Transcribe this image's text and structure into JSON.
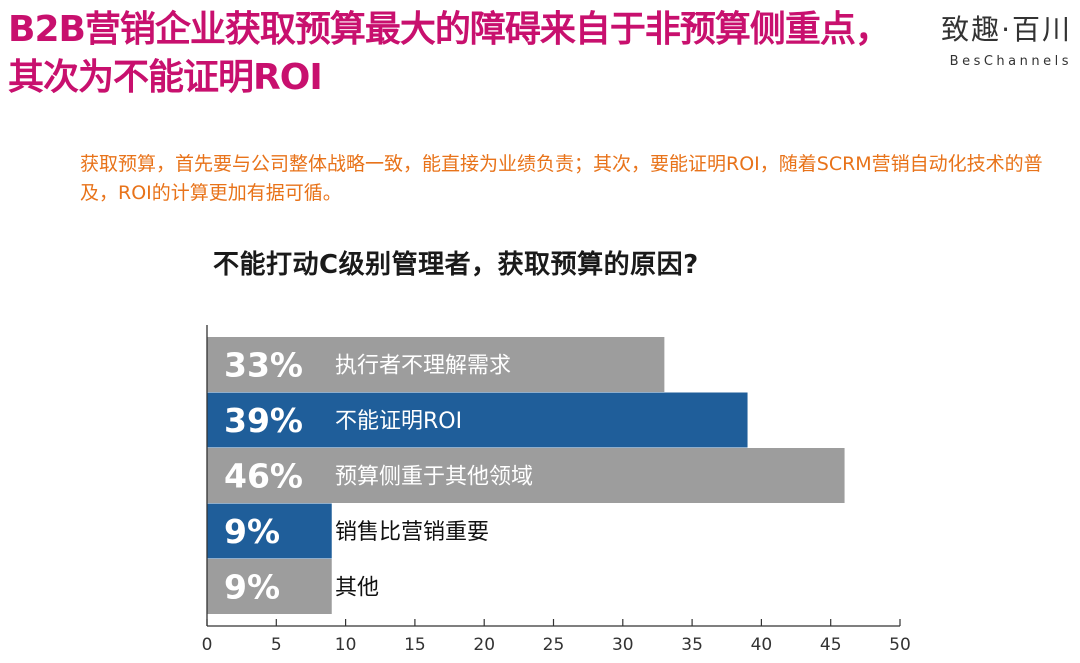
{
  "headline": "B2B营销企业获取预算最大的障碍来自于非预算侧重点，其次为不能证明ROI",
  "logo": {
    "cn": "致趣·百川",
    "en": "BesChannels"
  },
  "intro": "获取预算，首先要与公司整体战略一致，能直接为业绩负责；其次，要能证明ROI，随着SCRM营销自动化技术的普及，ROI的计算更加有据可循。",
  "colors": {
    "headline": "#c8106e",
    "intro": "#e8731a",
    "gray_bar": "#9d9d9d",
    "blue_bar": "#1f5e9a"
  },
  "chart_data": {
    "type": "bar",
    "orientation": "horizontal",
    "title": "不能打动C级别管理者，获取预算的原因?",
    "categories": [
      "执行者不理解需求",
      "不能证明ROI",
      "预算侧重于其他领域",
      "销售比营销重要",
      "其他"
    ],
    "values": [
      33,
      39,
      46,
      9,
      9
    ],
    "value_labels": [
      "33%",
      "39%",
      "46%",
      "9%",
      "9%"
    ],
    "bar_colors": [
      "#9d9d9d",
      "#1f5e9a",
      "#9d9d9d",
      "#1f5e9a",
      "#9d9d9d"
    ],
    "xlim": [
      0,
      50
    ],
    "xticks": [
      "0",
      "5",
      "10",
      "15",
      "20",
      "25",
      "30",
      "35",
      "40",
      "45",
      "50"
    ],
    "grid": false
  }
}
